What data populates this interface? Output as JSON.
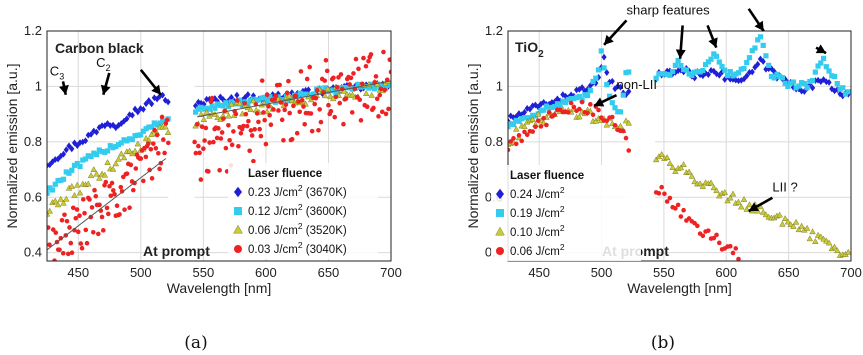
{
  "chart_data": [
    {
      "type": "scatter",
      "title": "Carbon black",
      "xlabel": "Wavelength [nm]",
      "ylabel": "Normalized emission [a.u.]",
      "xlim": [
        425,
        700
      ],
      "ylim": [
        0.37,
        1.2
      ],
      "xticks": [
        "450",
        "500",
        "550",
        "600",
        "650",
        "700"
      ],
      "yticks": [
        "0.4",
        "0.6",
        "0.8",
        "1",
        "1.2"
      ],
      "grid": true,
      "gap": [
        522,
        543
      ],
      "caption": "(a)",
      "stamp": "At prompt",
      "legend": {
        "title": "Laser fluence",
        "placement": "bottom-right",
        "entries": [
          {
            "text": "0.23 J/cm",
            "sup": "2",
            "suffix": " (3670K)"
          },
          {
            "text": "0.12 J/cm",
            "sup": "2",
            "suffix": " (3600K)"
          },
          {
            "text": "0.06 J/cm",
            "sup": "2",
            "suffix": " (3520K)"
          },
          {
            "text": "0.03 J/cm",
            "sup": "2",
            "suffix": " (3040K)"
          }
        ]
      },
      "annotations": [
        {
          "main": "C",
          "sub": "3",
          "x": 433,
          "y": 1.04
        },
        {
          "main": "C",
          "sub": "2",
          "x": 470,
          "y": 1.07
        }
      ],
      "series": [
        {
          "marker": "diamond",
          "color": "#1f1fd6",
          "points": [
            [
              425,
              0.72
            ],
            [
              440,
              0.77
            ],
            [
              455,
              0.81
            ],
            [
              465,
              0.84
            ],
            [
              472,
              0.87
            ],
            [
              480,
              0.86
            ],
            [
              490,
              0.9
            ],
            [
              500,
              0.92
            ],
            [
              510,
              0.95
            ],
            [
              516,
              0.97
            ],
            [
              520,
              0.94
            ],
            [
              545,
              0.94
            ],
            [
              560,
              0.95
            ],
            [
              580,
              0.96
            ],
            [
              600,
              0.96
            ],
            [
              620,
              0.97
            ],
            [
              640,
              0.98
            ],
            [
              660,
              0.99
            ],
            [
              680,
              1.0
            ],
            [
              700,
              1.0
            ]
          ]
        },
        {
          "marker": "square",
          "color": "#33ccee",
          "points": [
            [
              425,
              0.62
            ],
            [
              440,
              0.68
            ],
            [
              455,
              0.73
            ],
            [
              470,
              0.77
            ],
            [
              480,
              0.79
            ],
            [
              490,
              0.81
            ],
            [
              500,
              0.83
            ],
            [
              510,
              0.86
            ],
            [
              520,
              0.87
            ],
            [
              545,
              0.92
            ],
            [
              560,
              0.93
            ],
            [
              580,
              0.94
            ],
            [
              600,
              0.95
            ],
            [
              620,
              0.96
            ],
            [
              640,
              0.98
            ],
            [
              660,
              0.99
            ],
            [
              680,
              1.0
            ],
            [
              700,
              1.0
            ]
          ]
        },
        {
          "marker": "triangle",
          "color": "#c9c93a",
          "points": [
            [
              425,
              0.55
            ],
            [
              440,
              0.6
            ],
            [
              455,
              0.65
            ],
            [
              470,
              0.7
            ],
            [
              480,
              0.73
            ],
            [
              490,
              0.76
            ],
            [
              500,
              0.79
            ],
            [
              510,
              0.82
            ],
            [
              520,
              0.85
            ],
            [
              545,
              0.88
            ],
            [
              560,
              0.9
            ],
            [
              580,
              0.92
            ],
            [
              600,
              0.93
            ],
            [
              620,
              0.95
            ],
            [
              640,
              0.96
            ],
            [
              660,
              0.98
            ],
            [
              680,
              0.99
            ],
            [
              700,
              1.0
            ]
          ]
        },
        {
          "marker": "circle",
          "color": "#ee2222",
          "points": [
            [
              425,
              0.4
            ],
            [
              440,
              0.46
            ],
            [
              455,
              0.51
            ],
            [
              470,
              0.56
            ],
            [
              480,
              0.6
            ],
            [
              490,
              0.64
            ],
            [
              500,
              0.7
            ],
            [
              510,
              0.76
            ],
            [
              520,
              0.82
            ],
            [
              545,
              0.79
            ],
            [
              560,
              0.83
            ],
            [
              580,
              0.86
            ],
            [
              600,
              0.89
            ],
            [
              620,
              0.92
            ],
            [
              640,
              0.95
            ],
            [
              660,
              0.98
            ],
            [
              680,
              1.01
            ],
            [
              700,
              1.03
            ]
          ]
        }
      ]
    },
    {
      "type": "scatter",
      "title": "TiO",
      "title_sub": "2",
      "xlabel": "Wavelength [nm]",
      "ylabel": "Normalized emission [a.u.]",
      "xlim": [
        425,
        700
      ],
      "ylim": [
        0.37,
        1.2
      ],
      "xticks": [
        "450",
        "500",
        "550",
        "600",
        "650",
        "700"
      ],
      "yticks": [
        "0.4",
        "0.6",
        "0.8",
        "1",
        "1.2"
      ],
      "grid": true,
      "gap": [
        522,
        543
      ],
      "caption": "(b)",
      "stamp": "At prompt",
      "legend": {
        "title": "Laser fluence",
        "placement": "bottom-left",
        "entries": [
          {
            "text": "0.24 J/cm",
            "sup": "2",
            "suffix": ""
          },
          {
            "text": "0.19 J/cm",
            "sup": "2",
            "suffix": ""
          },
          {
            "text": "0.10 J/cm",
            "sup": "2",
            "suffix": ""
          },
          {
            "text": "0.06 J/cm",
            "sup": "2",
            "suffix": ""
          }
        ]
      },
      "annotations": [
        {
          "main": "sharp features",
          "sub": "",
          "x": 520,
          "y": 1.26
        },
        {
          "main": "non-LII",
          "sub": "",
          "x": 512,
          "y": 0.99
        },
        {
          "main": "LII ?",
          "sub": "",
          "x": 637,
          "y": 0.62
        }
      ],
      "series": [
        {
          "marker": "diamond",
          "color": "#1f1fd6",
          "points": [
            [
              425,
              0.88
            ],
            [
              440,
              0.91
            ],
            [
              455,
              0.94
            ],
            [
              470,
              0.96
            ],
            [
              480,
              0.98
            ],
            [
              490,
              1.0
            ],
            [
              497,
              1.01
            ],
            [
              502,
              1.1
            ],
            [
              506,
              1.02
            ],
            [
              512,
              0.99
            ],
            [
              520,
              0.98
            ],
            [
              545,
              1.04
            ],
            [
              555,
              1.05
            ],
            [
              565,
              1.06
            ],
            [
              575,
              1.04
            ],
            [
              590,
              1.06
            ],
            [
              600,
              1.03
            ],
            [
              615,
              1.02
            ],
            [
              627,
              1.09
            ],
            [
              640,
              1.04
            ],
            [
              655,
              1.0
            ],
            [
              665,
              0.99
            ],
            [
              678,
              1.03
            ],
            [
              690,
              0.98
            ],
            [
              700,
              0.97
            ]
          ]
        },
        {
          "marker": "square",
          "color": "#33ccee",
          "points": [
            [
              425,
              0.86
            ],
            [
              440,
              0.89
            ],
            [
              455,
              0.92
            ],
            [
              470,
              0.94
            ],
            [
              480,
              0.95
            ],
            [
              490,
              0.97
            ],
            [
              497,
              1.05
            ],
            [
              500,
              1.13
            ],
            [
              505,
              0.99
            ],
            [
              510,
              0.93
            ],
            [
              515,
              0.91
            ],
            [
              520,
              1.05
            ],
            [
              545,
              1.04
            ],
            [
              555,
              1.05
            ],
            [
              563,
              1.09
            ],
            [
              570,
              1.04
            ],
            [
              580,
              1.06
            ],
            [
              590,
              1.12
            ],
            [
              600,
              1.04
            ],
            [
              615,
              1.06
            ],
            [
              627,
              1.19
            ],
            [
              635,
              1.05
            ],
            [
              650,
              1.01
            ],
            [
              665,
              1.0
            ],
            [
              678,
              1.1
            ],
            [
              690,
              1.0
            ],
            [
              700,
              0.97
            ]
          ]
        },
        {
          "marker": "triangle",
          "color": "#c9c93a",
          "points": [
            [
              425,
              0.8
            ],
            [
              440,
              0.86
            ],
            [
              455,
              0.89
            ],
            [
              470,
              0.91
            ],
            [
              480,
              0.91
            ],
            [
              490,
              0.9
            ],
            [
              500,
              0.88
            ],
            [
              510,
              0.86
            ],
            [
              520,
              0.86
            ],
            [
              545,
              0.75
            ],
            [
              560,
              0.71
            ],
            [
              580,
              0.66
            ],
            [
              600,
              0.61
            ],
            [
              620,
              0.57
            ],
            [
              640,
              0.53
            ],
            [
              660,
              0.48
            ],
            [
              680,
              0.43
            ],
            [
              700,
              0.38
            ]
          ]
        },
        {
          "marker": "circle",
          "color": "#ee2222",
          "points": [
            [
              425,
              0.78
            ],
            [
              440,
              0.84
            ],
            [
              455,
              0.88
            ],
            [
              470,
              0.91
            ],
            [
              480,
              0.93
            ],
            [
              490,
              0.92
            ],
            [
              500,
              0.9
            ],
            [
              510,
              0.87
            ],
            [
              520,
              0.8
            ],
            [
              545,
              0.63
            ],
            [
              560,
              0.56
            ],
            [
              575,
              0.5
            ],
            [
              590,
              0.45
            ],
            [
              600,
              0.42
            ],
            [
              612,
              0.38
            ]
          ]
        }
      ]
    }
  ]
}
